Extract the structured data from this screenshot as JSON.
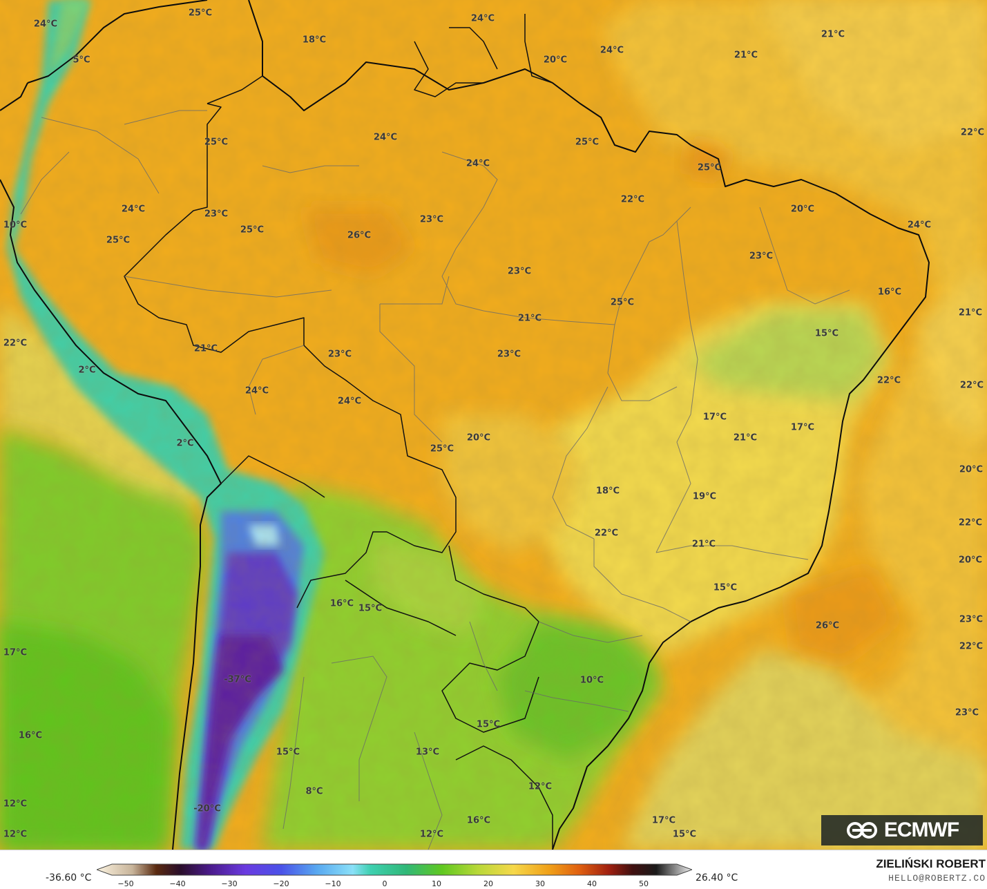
{
  "map": {
    "temperature_labels": [
      "24°C",
      "25°C",
      "5°C",
      "18°C",
      "24°C",
      "20°C",
      "24°C",
      "21°C",
      "21°C",
      "25°C",
      "24°C",
      "25°C",
      "24°C",
      "25°C",
      "22°C",
      "20°C",
      "22°C",
      "24°C",
      "24°C",
      "10°C",
      "23°C",
      "25°C",
      "26°C",
      "23°C",
      "23°C",
      "25°C",
      "16°C",
      "25°C",
      "21°C",
      "23°C",
      "15°C",
      "21°C",
      "22°C",
      "21°C",
      "23°C",
      "23°C",
      "2°C",
      "22°C",
      "24°C",
      "24°C",
      "17°C",
      "21°C",
      "17°C",
      "22°C",
      "2°C",
      "20°C",
      "25°C",
      "20°C",
      "18°C",
      "19°C",
      "22°C",
      "22°C",
      "21°C",
      "20°C",
      "16°C",
      "15°C",
      "15°C",
      "26°C",
      "23°C",
      "17°C",
      "22°C",
      "-37°C",
      "10°C",
      "16°C",
      "23°C",
      "15°C",
      "15°C",
      "13°C",
      "8°C",
      "12°C",
      "12°C",
      "-20°C",
      "16°C",
      "12°C",
      "17°C",
      "15°C",
      "12°C"
    ]
  },
  "logo": {
    "text": "ECMWF",
    "icon": "ecmwf-logo-icon"
  },
  "legend": {
    "min_value": "-36.60 °C",
    "max_value": "26.40 °C",
    "ticks": [
      "−50",
      "−40",
      "−30",
      "−20",
      "−10",
      "0",
      "10",
      "20",
      "30",
      "40",
      "50"
    ]
  },
  "credit": {
    "author": "ZIELIŃSKI ROBERT",
    "email": "HELLO@ROBERTZ.CO"
  }
}
